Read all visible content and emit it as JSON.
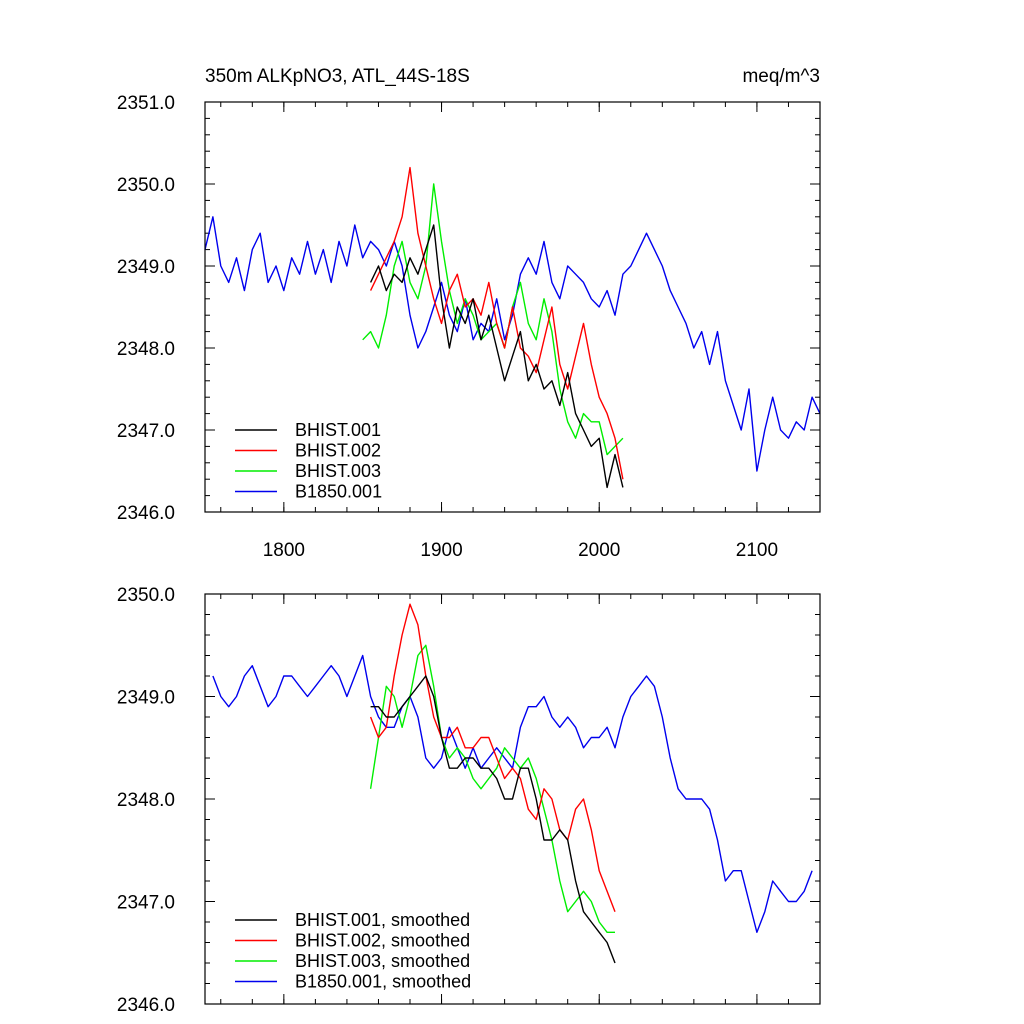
{
  "chart_data": [
    {
      "type": "line",
      "title": "350m ALKpNO3, ATL_44S-18S",
      "units": "meq/m^3",
      "xlim": [
        1750,
        2140
      ],
      "ylim": [
        2346.0,
        2351.0
      ],
      "x_ticks": [
        1800,
        1900,
        2000,
        2100
      ],
      "x_tick_labels": [
        "1800",
        "1900",
        "2000",
        "2100"
      ],
      "y_ticks": [
        2346.0,
        2347.0,
        2348.0,
        2349.0,
        2350.0,
        2351.0
      ],
      "y_tick_labels": [
        "2346.0",
        "2347.0",
        "2348.0",
        "2349.0",
        "2350.0",
        "2351.0"
      ],
      "legend_position": "bottom-left",
      "series": [
        {
          "name": "BHIST.001",
          "color": "#000000",
          "x": [
            1855,
            1860,
            1865,
            1870,
            1875,
            1880,
            1885,
            1890,
            1895,
            1900,
            1905,
            1910,
            1915,
            1920,
            1925,
            1930,
            1935,
            1940,
            1945,
            1950,
            1955,
            1960,
            1965,
            1970,
            1975,
            1980,
            1985,
            1990,
            1995,
            2000,
            2005,
            2010,
            2015
          ],
          "y": [
            2348.8,
            2349.0,
            2348.7,
            2348.9,
            2348.8,
            2349.1,
            2348.9,
            2349.2,
            2349.5,
            2348.6,
            2348.0,
            2348.5,
            2348.3,
            2348.6,
            2348.1,
            2348.4,
            2348.0,
            2347.6,
            2347.9,
            2348.2,
            2347.6,
            2347.8,
            2347.5,
            2347.6,
            2347.3,
            2347.7,
            2347.2,
            2347.0,
            2346.8,
            2346.9,
            2346.3,
            2346.7,
            2346.3
          ]
        },
        {
          "name": "BHIST.002",
          "color": "#ff0000",
          "x": [
            1855,
            1860,
            1865,
            1870,
            1875,
            1880,
            1885,
            1890,
            1895,
            1900,
            1905,
            1910,
            1915,
            1920,
            1925,
            1930,
            1935,
            1940,
            1945,
            1950,
            1955,
            1960,
            1965,
            1970,
            1975,
            1980,
            1985,
            1990,
            1995,
            2000,
            2005,
            2010,
            2015
          ],
          "y": [
            2348.7,
            2348.9,
            2349.1,
            2349.3,
            2349.6,
            2350.2,
            2349.4,
            2349.0,
            2348.6,
            2348.3,
            2348.7,
            2348.9,
            2348.5,
            2348.6,
            2348.4,
            2348.8,
            2348.3,
            2348.0,
            2348.5,
            2348.0,
            2347.9,
            2347.7,
            2348.1,
            2348.5,
            2347.8,
            2347.5,
            2347.9,
            2348.3,
            2347.8,
            2347.4,
            2347.2,
            2346.9,
            2346.4
          ]
        },
        {
          "name": "BHIST.003",
          "color": "#00ee00",
          "x": [
            1850,
            1855,
            1860,
            1865,
            1870,
            1875,
            1880,
            1885,
            1890,
            1895,
            1900,
            1905,
            1910,
            1915,
            1920,
            1925,
            1930,
            1935,
            1940,
            1945,
            1950,
            1955,
            1960,
            1965,
            1970,
            1975,
            1980,
            1985,
            1990,
            1995,
            2000,
            2005,
            2010,
            2015
          ],
          "y": [
            2348.1,
            2348.2,
            2348.0,
            2348.4,
            2349.0,
            2349.3,
            2348.8,
            2348.6,
            2349.0,
            2350.0,
            2349.3,
            2348.7,
            2348.3,
            2348.6,
            2348.4,
            2348.1,
            2348.2,
            2348.3,
            2348.0,
            2348.5,
            2348.8,
            2348.3,
            2348.1,
            2348.6,
            2348.2,
            2347.5,
            2347.1,
            2346.9,
            2347.2,
            2347.1,
            2347.1,
            2346.7,
            2346.8,
            2346.9
          ]
        },
        {
          "name": "B1850.001",
          "color": "#0000ee",
          "x": [
            1750,
            1755,
            1760,
            1765,
            1770,
            1775,
            1780,
            1785,
            1790,
            1795,
            1800,
            1805,
            1810,
            1815,
            1820,
            1825,
            1830,
            1835,
            1840,
            1845,
            1850,
            1855,
            1860,
            1865,
            1870,
            1875,
            1880,
            1885,
            1890,
            1895,
            1900,
            1905,
            1910,
            1915,
            1920,
            1925,
            1930,
            1935,
            1940,
            1945,
            1950,
            1955,
            1960,
            1965,
            1970,
            1975,
            1980,
            1985,
            1990,
            1995,
            2000,
            2005,
            2010,
            2015,
            2020,
            2025,
            2030,
            2035,
            2040,
            2045,
            2050,
            2055,
            2060,
            2065,
            2070,
            2075,
            2080,
            2085,
            2090,
            2095,
            2100,
            2105,
            2110,
            2115,
            2120,
            2125,
            2130,
            2135,
            2140
          ],
          "y": [
            2349.2,
            2349.6,
            2349.0,
            2348.8,
            2349.1,
            2348.7,
            2349.2,
            2349.4,
            2348.8,
            2349.0,
            2348.7,
            2349.1,
            2348.9,
            2349.3,
            2348.9,
            2349.2,
            2348.8,
            2349.3,
            2349.0,
            2349.5,
            2349.1,
            2349.3,
            2349.2,
            2349.0,
            2349.3,
            2349.0,
            2348.4,
            2348.0,
            2348.2,
            2348.5,
            2348.8,
            2348.4,
            2348.2,
            2348.6,
            2348.1,
            2348.3,
            2348.2,
            2348.6,
            2348.1,
            2348.4,
            2348.9,
            2349.1,
            2348.9,
            2349.3,
            2348.8,
            2348.6,
            2349.0,
            2348.9,
            2348.8,
            2348.6,
            2348.5,
            2348.7,
            2348.4,
            2348.9,
            2349.0,
            2349.2,
            2349.4,
            2349.2,
            2349.0,
            2348.7,
            2348.5,
            2348.3,
            2348.0,
            2348.2,
            2347.8,
            2348.2,
            2347.6,
            2347.3,
            2347.0,
            2347.5,
            2346.5,
            2347.0,
            2347.4,
            2347.0,
            2346.9,
            2347.1,
            2347.0,
            2347.4,
            2347.2
          ]
        }
      ]
    },
    {
      "type": "line",
      "title": "",
      "xlim": [
        1750,
        2140
      ],
      "ylim": [
        2346.0,
        2350.0
      ],
      "x_ticks": [
        1800,
        1900,
        2000,
        2100
      ],
      "x_tick_labels": [],
      "y_ticks": [
        2346.0,
        2347.0,
        2348.0,
        2349.0,
        2350.0
      ],
      "y_tick_labels": [
        "2346.0",
        "2347.0",
        "2348.0",
        "2349.0",
        "2350.0"
      ],
      "legend_position": "bottom-left",
      "series": [
        {
          "name": "BHIST.001, smoothed",
          "color": "#000000",
          "x": [
            1855,
            1860,
            1865,
            1870,
            1875,
            1880,
            1885,
            1890,
            1895,
            1900,
            1905,
            1910,
            1915,
            1920,
            1925,
            1930,
            1935,
            1940,
            1945,
            1950,
            1955,
            1960,
            1965,
            1970,
            1975,
            1980,
            1985,
            1990,
            1995,
            2000,
            2005,
            2010
          ],
          "y": [
            2348.9,
            2348.9,
            2348.8,
            2348.8,
            2348.9,
            2349.0,
            2349.1,
            2349.2,
            2349.0,
            2348.6,
            2348.3,
            2348.3,
            2348.4,
            2348.4,
            2348.3,
            2348.3,
            2348.2,
            2348.0,
            2348.0,
            2348.3,
            2348.3,
            2348.0,
            2347.6,
            2347.6,
            2347.7,
            2347.6,
            2347.2,
            2346.9,
            2346.8,
            2346.7,
            2346.6,
            2346.4
          ]
        },
        {
          "name": "BHIST.002, smoothed",
          "color": "#ff0000",
          "x": [
            1855,
            1860,
            1865,
            1870,
            1875,
            1880,
            1885,
            1890,
            1895,
            1900,
            1905,
            1910,
            1915,
            1920,
            1925,
            1930,
            1935,
            1940,
            1945,
            1950,
            1955,
            1960,
            1965,
            1970,
            1975,
            1980,
            1985,
            1990,
            1995,
            2000,
            2005,
            2010
          ],
          "y": [
            2348.8,
            2348.6,
            2348.7,
            2349.2,
            2349.6,
            2349.9,
            2349.7,
            2349.2,
            2348.8,
            2348.6,
            2348.6,
            2348.7,
            2348.5,
            2348.5,
            2348.6,
            2348.6,
            2348.4,
            2348.2,
            2348.3,
            2348.2,
            2347.9,
            2347.8,
            2348.1,
            2348.0,
            2347.7,
            2347.6,
            2347.9,
            2348.0,
            2347.7,
            2347.3,
            2347.1,
            2346.9
          ]
        },
        {
          "name": "BHIST.003, smoothed",
          "color": "#00ee00",
          "x": [
            1855,
            1860,
            1865,
            1870,
            1875,
            1880,
            1885,
            1890,
            1895,
            1900,
            1905,
            1910,
            1915,
            1920,
            1925,
            1930,
            1935,
            1940,
            1945,
            1950,
            1955,
            1960,
            1965,
            1970,
            1975,
            1980,
            1985,
            1990,
            1995,
            2000,
            2005,
            2010
          ],
          "y": [
            2348.1,
            2348.6,
            2349.1,
            2349.0,
            2348.7,
            2349.0,
            2349.4,
            2349.5,
            2349.1,
            2348.6,
            2348.4,
            2348.5,
            2348.4,
            2348.2,
            2348.1,
            2348.2,
            2348.3,
            2348.5,
            2348.4,
            2348.3,
            2348.4,
            2348.2,
            2347.9,
            2347.6,
            2347.2,
            2346.9,
            2347.0,
            2347.1,
            2347.0,
            2346.8,
            2346.7,
            2346.7
          ]
        },
        {
          "name": "B1850.001, smoothed",
          "color": "#0000ee",
          "x": [
            1755,
            1760,
            1765,
            1770,
            1775,
            1780,
            1785,
            1790,
            1795,
            1800,
            1805,
            1810,
            1815,
            1820,
            1825,
            1830,
            1835,
            1840,
            1845,
            1850,
            1855,
            1860,
            1865,
            1870,
            1875,
            1880,
            1885,
            1890,
            1895,
            1900,
            1905,
            1910,
            1915,
            1920,
            1925,
            1930,
            1935,
            1940,
            1945,
            1950,
            1955,
            1960,
            1965,
            1970,
            1975,
            1980,
            1985,
            1990,
            1995,
            2000,
            2005,
            2010,
            2015,
            2020,
            2025,
            2030,
            2035,
            2040,
            2045,
            2050,
            2055,
            2060,
            2065,
            2070,
            2075,
            2080,
            2085,
            2090,
            2095,
            2100,
            2105,
            2110,
            2115,
            2120,
            2125,
            2130,
            2135
          ],
          "y": [
            2349.2,
            2349.0,
            2348.9,
            2349.0,
            2349.2,
            2349.3,
            2349.1,
            2348.9,
            2349.0,
            2349.2,
            2349.2,
            2349.1,
            2349.0,
            2349.1,
            2349.2,
            2349.3,
            2349.2,
            2349.0,
            2349.2,
            2349.4,
            2349.0,
            2348.8,
            2348.7,
            2348.7,
            2348.9,
            2349.0,
            2348.8,
            2348.4,
            2348.3,
            2348.4,
            2348.7,
            2348.5,
            2348.3,
            2348.5,
            2348.3,
            2348.4,
            2348.5,
            2348.4,
            2348.3,
            2348.7,
            2348.9,
            2348.9,
            2349.0,
            2348.8,
            2348.7,
            2348.8,
            2348.7,
            2348.5,
            2348.6,
            2348.6,
            2348.7,
            2348.5,
            2348.8,
            2349.0,
            2349.1,
            2349.2,
            2349.1,
            2348.8,
            2348.4,
            2348.1,
            2348.0,
            2348.0,
            2348.0,
            2347.9,
            2347.6,
            2347.2,
            2347.3,
            2347.3,
            2347.0,
            2346.7,
            2346.9,
            2347.2,
            2347.1,
            2347.0,
            2347.0,
            2347.1,
            2347.3
          ]
        }
      ]
    }
  ]
}
